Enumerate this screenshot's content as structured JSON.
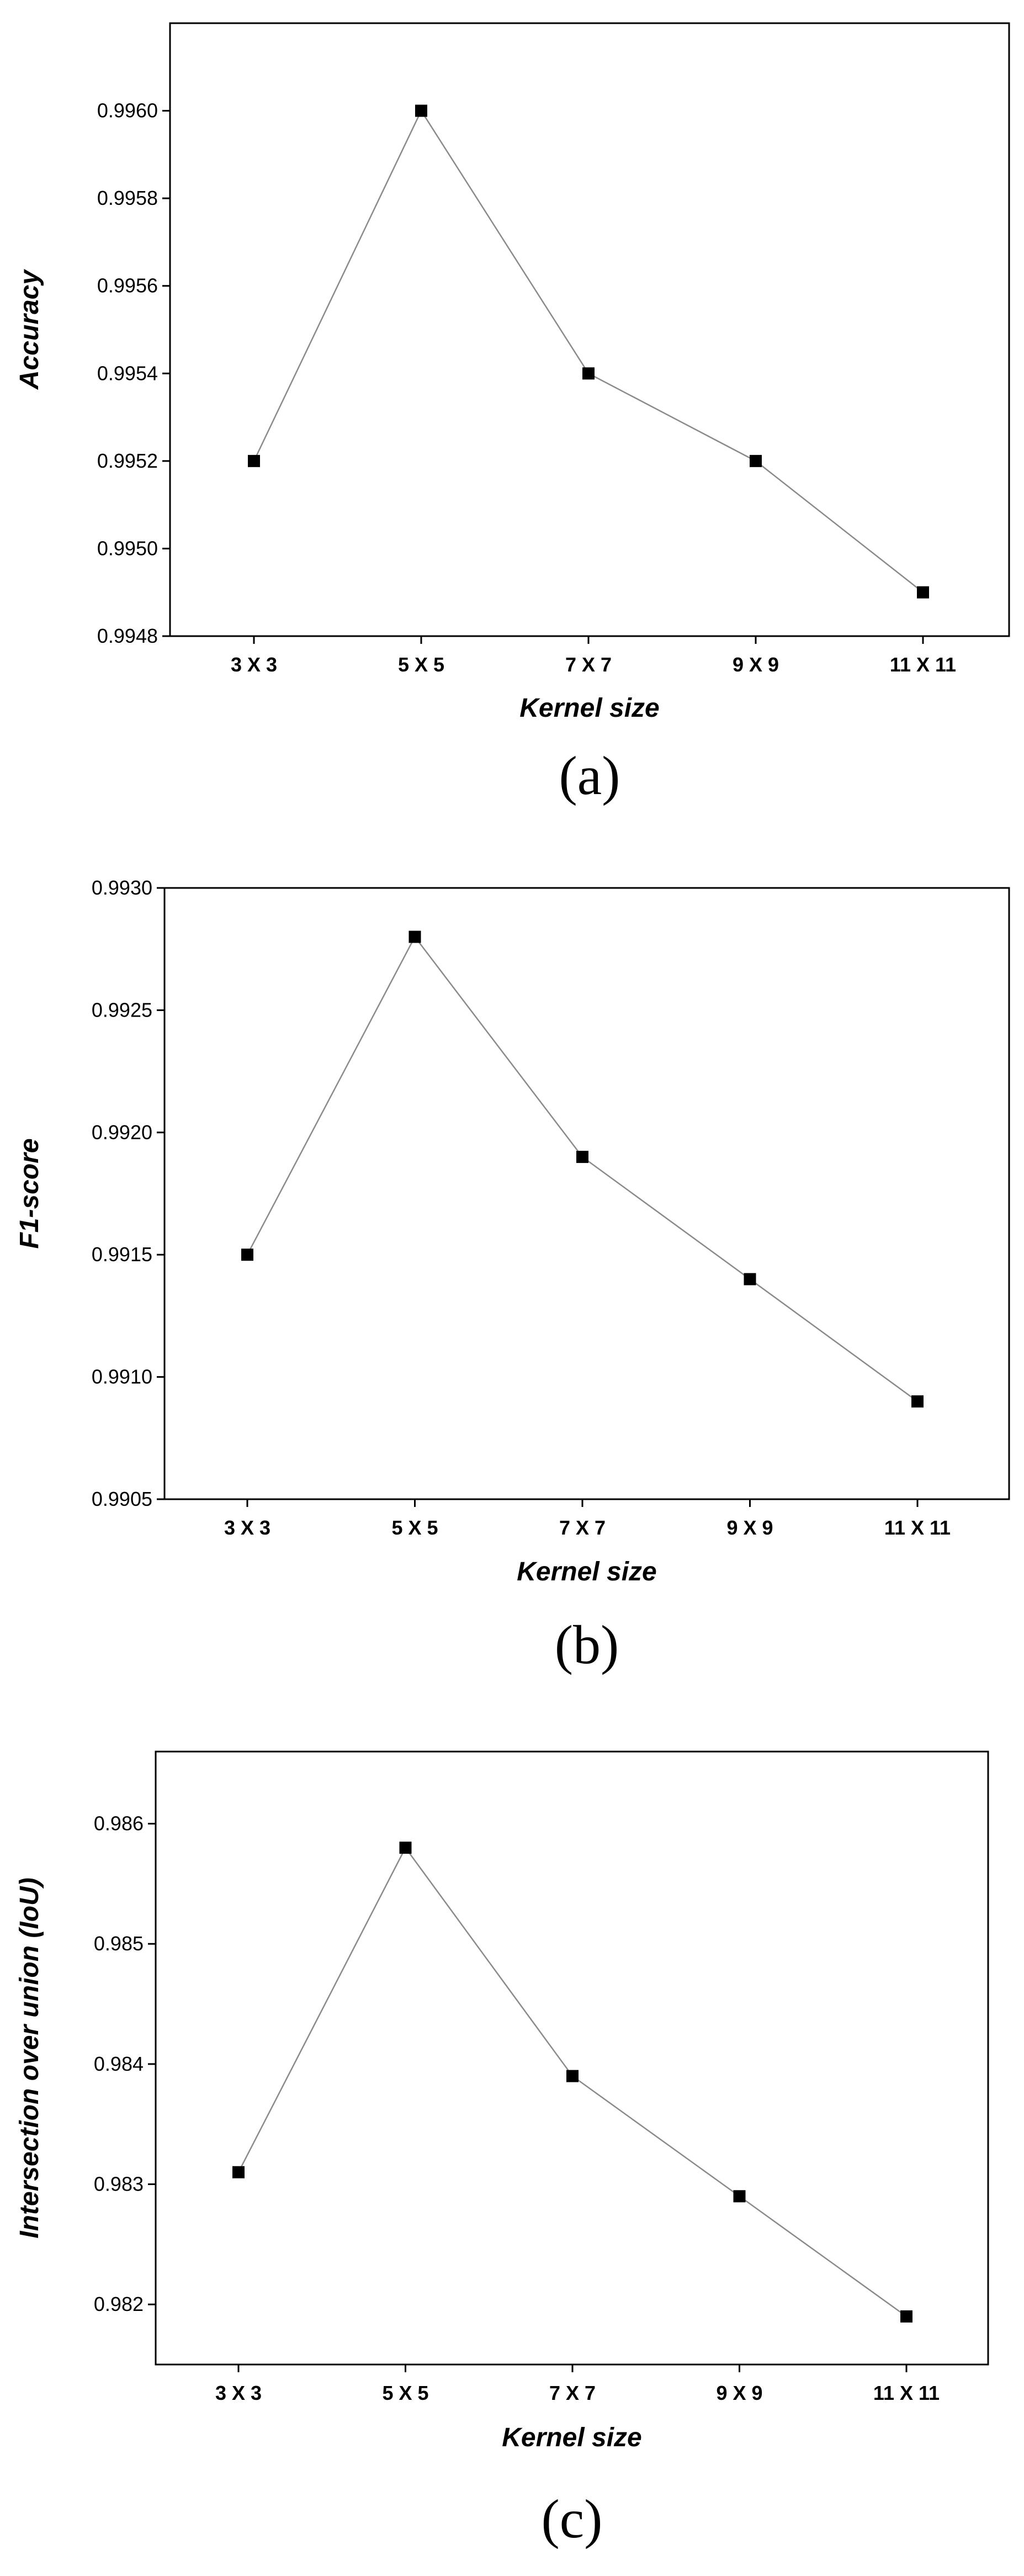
{
  "chart_data": [
    {
      "type": "line",
      "panel_label": "(a)",
      "xlabel": "Kernel size",
      "ylabel": "Accuracy",
      "categories": [
        "3 X 3",
        "5 X 5",
        "7 X 7",
        "9 X 9",
        "11 X 11"
      ],
      "series": [
        {
          "values": [
            0.9952,
            0.996,
            0.9954,
            0.9952,
            0.9949
          ]
        }
      ],
      "ylim": [
        0.9948,
        0.9962
      ],
      "yticks": [
        0.9948,
        0.995,
        0.9952,
        0.9954,
        0.9956,
        0.9958,
        0.996
      ],
      "ytick_labels": [
        "0.9948",
        "0.9950",
        "0.9952",
        "0.9954",
        "0.9956",
        "0.9958",
        "0.9960"
      ],
      "grid": false,
      "marker": "square",
      "line_color": "#8a8a8a",
      "marker_color": "#000000"
    },
    {
      "type": "line",
      "panel_label": "(b)",
      "xlabel": "Kernel size",
      "ylabel": "F1-score",
      "categories": [
        "3 X 3",
        "5 X 5",
        "7 X 7",
        "9 X 9",
        "11 X 11"
      ],
      "series": [
        {
          "values": [
            0.9915,
            0.9928,
            0.9919,
            0.9914,
            0.9909
          ]
        }
      ],
      "ylim": [
        0.9905,
        0.993
      ],
      "yticks": [
        0.9905,
        0.991,
        0.9915,
        0.992,
        0.9925,
        0.993
      ],
      "ytick_labels": [
        "0.9905",
        "0.9910",
        "0.9915",
        "0.9920",
        "0.9925",
        "0.9930"
      ],
      "grid": false,
      "marker": "square",
      "line_color": "#8a8a8a",
      "marker_color": "#000000"
    },
    {
      "type": "line",
      "panel_label": "(c)",
      "xlabel": "Kernel size",
      "ylabel": "Intersection over union (IoU)",
      "categories": [
        "3 X 3",
        "5 X 5",
        "7 X 7",
        "9 X 9",
        "11 X 11"
      ],
      "series": [
        {
          "values": [
            0.9831,
            0.9858,
            0.9839,
            0.9829,
            0.9819
          ]
        }
      ],
      "ylim": [
        0.9815,
        0.9866
      ],
      "yticks": [
        0.982,
        0.983,
        0.984,
        0.985,
        0.986
      ],
      "ytick_labels": [
        "0.982",
        "0.983",
        "0.984",
        "0.985",
        "0.986"
      ],
      "grid": false,
      "marker": "square",
      "line_color": "#8a8a8a",
      "marker_color": "#000000"
    }
  ]
}
